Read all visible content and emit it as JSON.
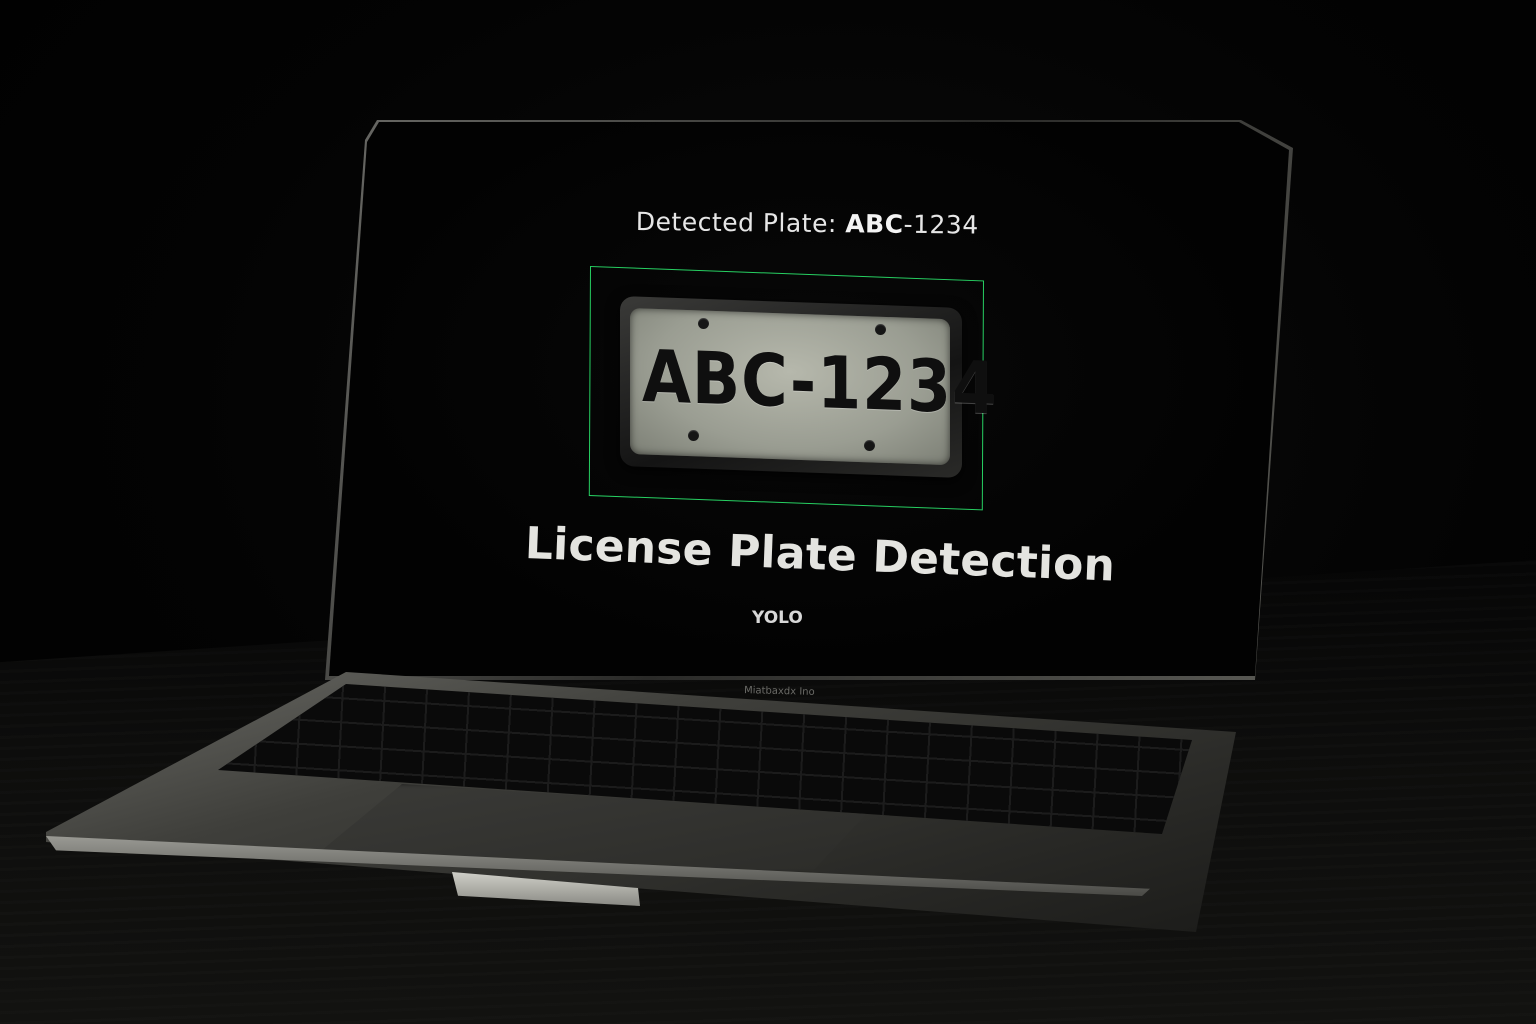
{
  "screen": {
    "detected_prefix": "Detected Plate: ",
    "detected_bold": "ABC",
    "detected_rest": "-1234",
    "plate_text": "ABC-1234",
    "heading": "License Plate Detection",
    "subheading": "YOLO"
  },
  "laptop": {
    "brand_label": "Miatbaxdx Ino"
  },
  "colors": {
    "bounding_box": "#27d062",
    "plate_background": "#a8ab9f",
    "screen_background": "#050505"
  }
}
